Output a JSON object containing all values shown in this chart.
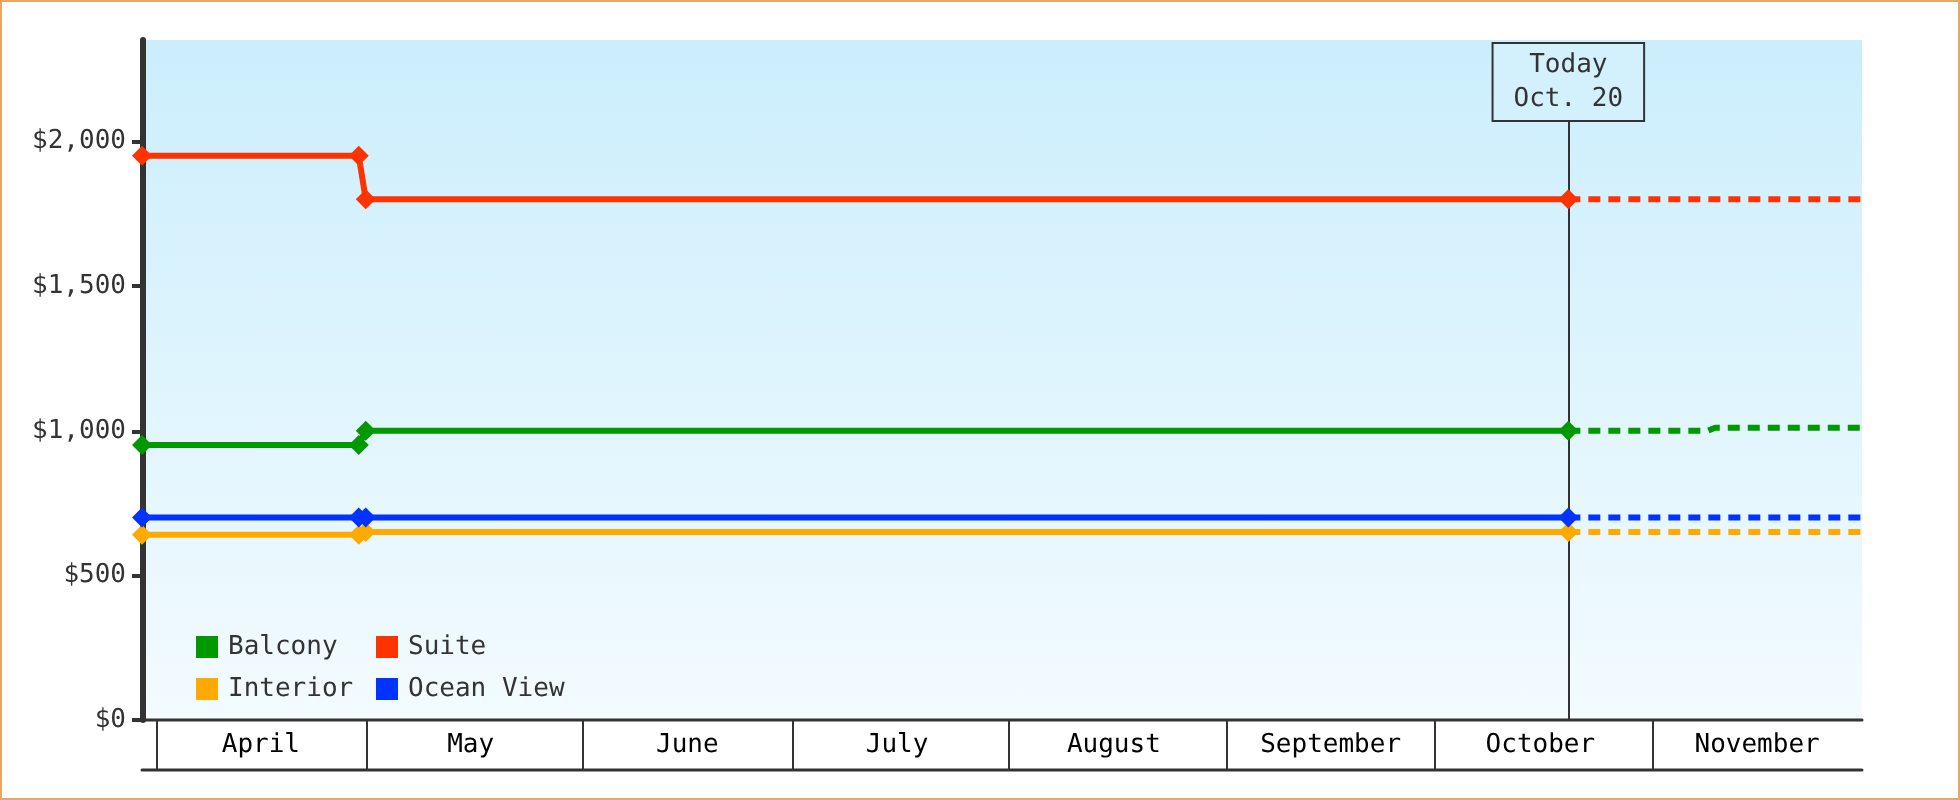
{
  "chart_data": {
    "type": "line",
    "xlim": [
      "--03-30",
      "--12-01"
    ],
    "xticks": [
      {
        "value": "--04-01",
        "label": null
      },
      {
        "value": "--05-01",
        "label": null
      },
      {
        "value": "--06-01",
        "label": null
      },
      {
        "value": "--07-01",
        "label": null
      },
      {
        "value": "--08-01",
        "label": null
      },
      {
        "value": "--09-01",
        "label": null
      },
      {
        "value": "--10-01",
        "label": null
      },
      {
        "value": "--11-01",
        "label": null
      },
      {
        "value": "--04-16",
        "label": "April"
      },
      {
        "value": "--05-16",
        "label": "May"
      },
      {
        "value": "--06-16",
        "label": "June"
      },
      {
        "value": "--07-16",
        "label": "July"
      },
      {
        "value": "--08-16",
        "label": "August"
      },
      {
        "value": "--09-16",
        "label": "September"
      },
      {
        "value": "--10-16",
        "label": "October"
      },
      {
        "value": "--11-16",
        "label": "November"
      }
    ],
    "ylim": [
      0,
      2350
    ],
    "yticks": [
      {
        "value": 0,
        "label": "$0"
      },
      {
        "value": 500,
        "label": "$500"
      },
      {
        "value": 1000,
        "label": "$1,000"
      },
      {
        "value": 1500,
        "label": "$1,500"
      },
      {
        "value": 2000,
        "label": "$2,000"
      }
    ],
    "series": [
      {
        "name": "Balcony",
        "color": "#009900",
        "x": [
          "--03-30",
          "--04-30",
          "--05-01",
          "--10-20"
        ],
        "values": [
          950,
          950,
          1000,
          1000
        ]
      },
      {
        "name": "Suite",
        "color": "#ff3300",
        "x": [
          "--03-30",
          "--04-30",
          "--05-01",
          "--10-20"
        ],
        "values": [
          1950,
          1950,
          1800,
          1800
        ]
      },
      {
        "name": "Interior",
        "color": "#ffaa00",
        "x": [
          "--03-30",
          "--04-30",
          "--05-01",
          "--10-20"
        ],
        "values": [
          640,
          640,
          650,
          650
        ]
      },
      {
        "name": "Ocean View",
        "color": "#0033ff",
        "x": [
          "--03-30",
          "--04-30",
          "--05-01",
          "--10-20"
        ],
        "values": [
          700,
          700,
          700,
          700
        ]
      },
      {
        "color": "#009900",
        "line_style": "dashed",
        "marker": "none",
        "x": [
          "--10-20",
          "--11-09",
          "--11-10",
          "--12-01"
        ],
        "values": [
          1000,
          1000,
          1010,
          1010
        ]
      },
      {
        "color": "#ff3300",
        "line_style": "dashed",
        "marker": "none",
        "x": [
          "--10-20",
          "--12-01"
        ],
        "values": [
          1800,
          1800
        ]
      },
      {
        "color": "#ffaa00",
        "line_style": "dashed",
        "marker": "none",
        "x": [
          "--10-20",
          "--12-01"
        ],
        "values": [
          650,
          650
        ]
      },
      {
        "color": "#0033ff",
        "line_style": "dashed",
        "marker": "none",
        "x": [
          "--10-20",
          "--12-01"
        ],
        "values": [
          700,
          700
        ]
      }
    ],
    "ref_lines": [
      {
        "axis": "x",
        "value": "--10-20",
        "label": "Today\nOct. 20"
      }
    ],
    "legend": "bottom left",
    "marker": "diamond",
    "grid": false
  }
}
